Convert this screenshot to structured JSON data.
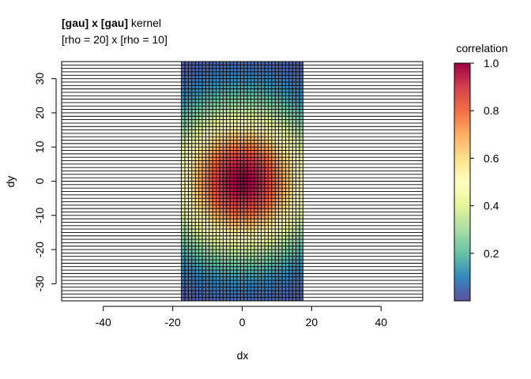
{
  "chart_data": {
    "type": "heatmap",
    "title_bold_1": "[gau]",
    "title_mid": " x ",
    "title_bold_2": "[gau]",
    "title_rest": " kernel",
    "subtitle": "[rho = 20] x [rho = 10]",
    "xlabel": "dx",
    "ylabel": "dy",
    "xlim": [
      -52,
      52
    ],
    "ylim": [
      -35,
      35
    ],
    "x_ticks": [
      "-40",
      "-20",
      "0",
      "20",
      "40"
    ],
    "x_tick_values": [
      -40,
      -20,
      0,
      20,
      40
    ],
    "y_ticks": [
      "-30",
      "-20",
      "-10",
      "0",
      "10",
      "20",
      "30"
    ],
    "y_tick_values": [
      -30,
      -20,
      -10,
      0,
      10,
      20,
      30
    ],
    "kernel": {
      "x_range": [
        -17.5,
        17.5
      ],
      "y_range": [
        -35,
        35
      ],
      "x_step": 1,
      "y_step": 1
    },
    "colorbar": {
      "title": "correlation",
      "range": [
        0,
        1
      ],
      "ticks": [
        "0.2",
        "0.4",
        "0.6",
        "0.8",
        "1.0"
      ],
      "tick_values": [
        0.2,
        0.4,
        0.6,
        0.8,
        1.0
      ],
      "palette": [
        "#5E4FA2",
        "#3288BD",
        "#66C2A5",
        "#ABDDA4",
        "#E6F598",
        "#FFFFBF",
        "#FEE08B",
        "#FDAE61",
        "#F46D43",
        "#D53E4F",
        "#9E0142"
      ]
    },
    "grid_line_color": "#000000"
  }
}
